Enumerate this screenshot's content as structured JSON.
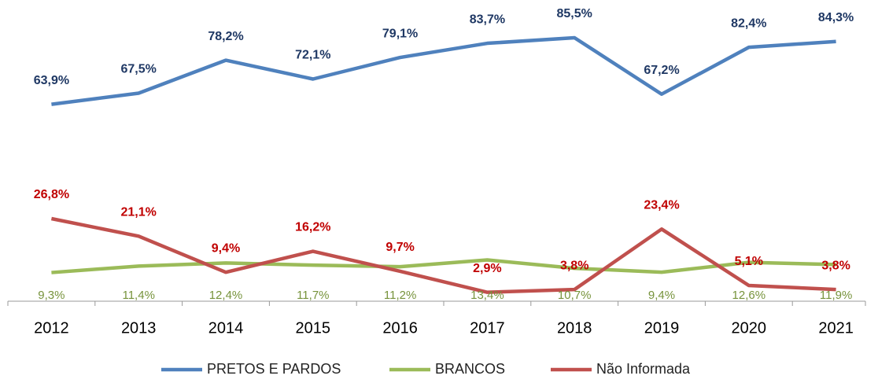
{
  "chart_data": {
    "type": "line",
    "categories": [
      "2012",
      "2013",
      "2014",
      "2015",
      "2016",
      "2017",
      "2018",
      "2019",
      "2020",
      "2021"
    ],
    "series": [
      {
        "name": "PRETOS E PARDOS",
        "color": "#4f81bd",
        "label_color": "#1f3864",
        "values": [
          63.9,
          67.5,
          78.2,
          72.1,
          79.1,
          83.7,
          85.5,
          67.2,
          82.4,
          84.3
        ],
        "value_labels": [
          "63,9%",
          "67,5%",
          "78,2%",
          "72,1%",
          "79,1%",
          "83,7%",
          "85,5%",
          "67,2%",
          "82,4%",
          "84,3%"
        ]
      },
      {
        "name": "BRANCOS",
        "color": "#9bbb59",
        "label_color": "#77933c",
        "values": [
          9.3,
          11.4,
          12.4,
          11.7,
          11.2,
          13.4,
          10.7,
          9.4,
          12.6,
          11.9
        ],
        "value_labels": [
          "9,3%",
          "11,4%",
          "12,4%",
          "11,7%",
          "11,2%",
          "13,4%",
          "10,7%",
          "9,4%",
          "12,6%",
          "11,9%"
        ]
      },
      {
        "name": "Não Informada",
        "color": "#c0504d",
        "label_color": "#c00000",
        "values": [
          26.8,
          21.1,
          9.4,
          16.2,
          9.7,
          2.9,
          3.8,
          23.4,
          5.1,
          3.8
        ],
        "value_labels": [
          "26,8%",
          "21,1%",
          "9,4%",
          "16,2%",
          "9,7%",
          "2,9%",
          "3,8%",
          "23,4%",
          "5,1%",
          "3,8%"
        ]
      }
    ],
    "legend": "bottom"
  }
}
